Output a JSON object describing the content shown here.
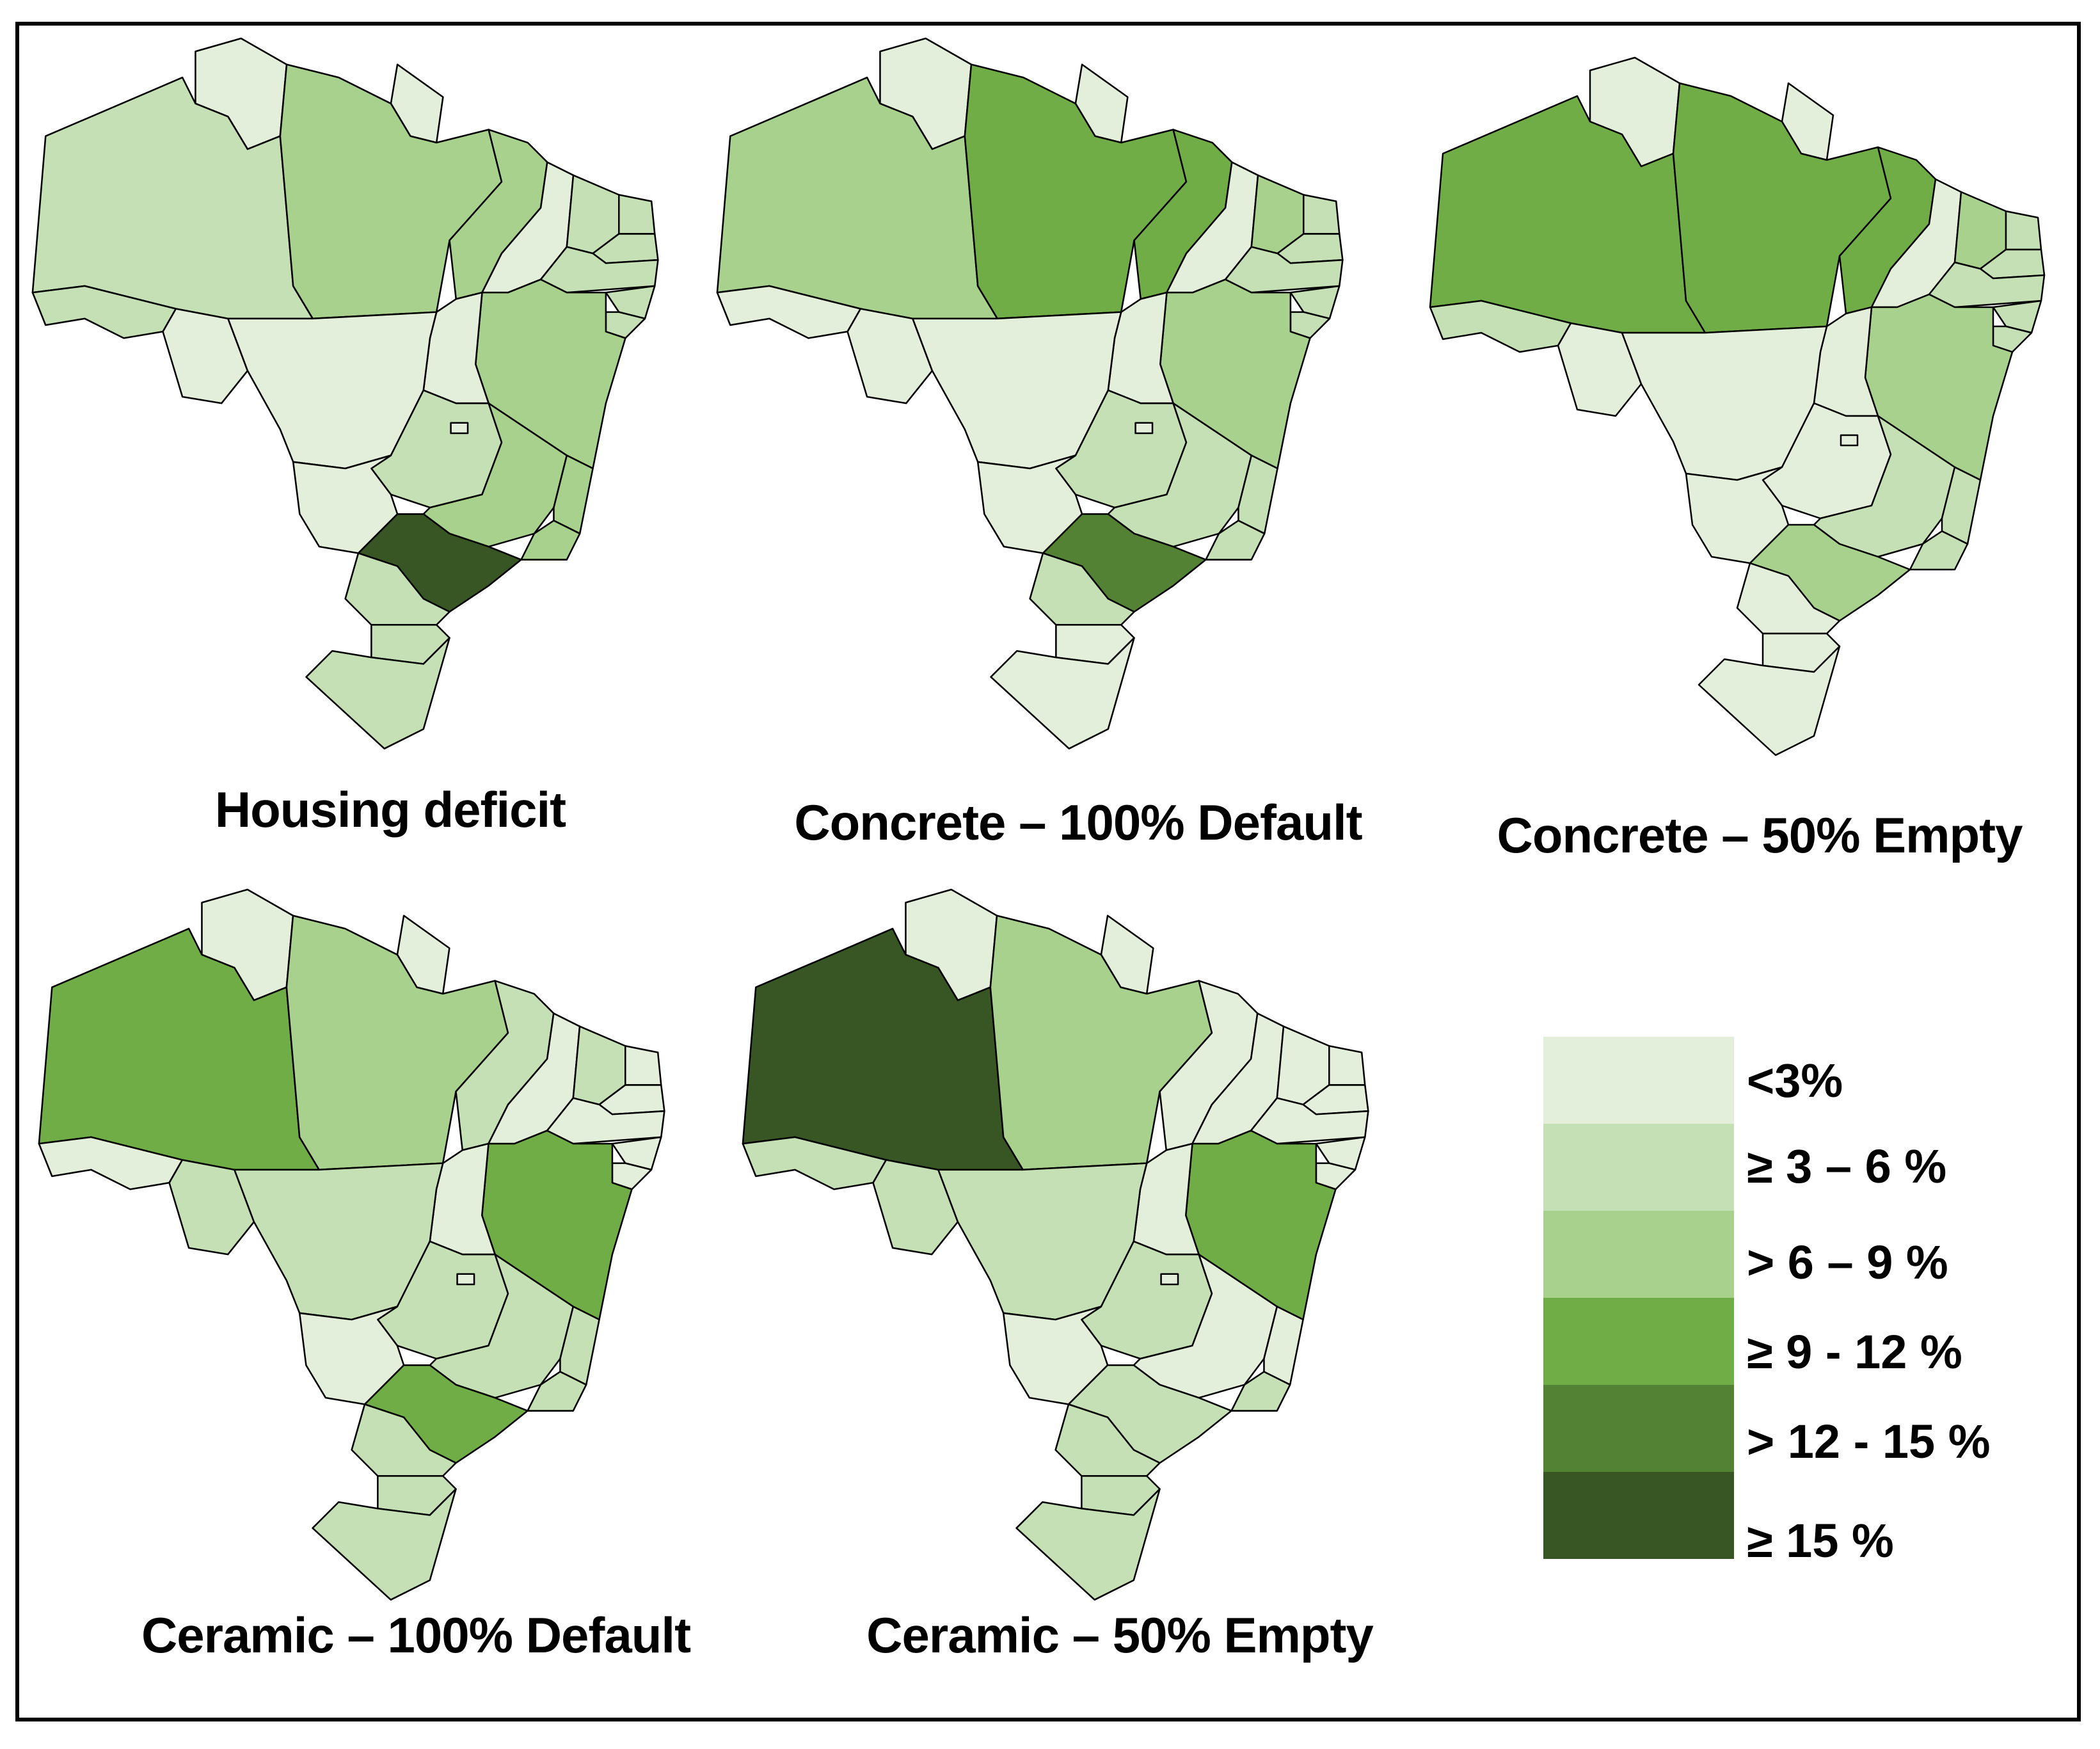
{
  "figure": {
    "panels": [
      {
        "id": "housing-deficit",
        "caption": "Housing deficit",
        "classes": {
          "RR": 0,
          "AM": 1,
          "AP": 0,
          "PA": 2,
          "MA": 2,
          "PI": 0,
          "CE": 1,
          "RN": 1,
          "PB": 1,
          "PE": 1,
          "AL": 1,
          "SE": 1,
          "BA": 2,
          "TO": 0,
          "MT": 0,
          "RO": 0,
          "AC": 1,
          "GO": 1,
          "DF": 0,
          "MS": 0,
          "MG": 2,
          "ES": 2,
          "RJ": 2,
          "SP": 5,
          "PR": 1,
          "SC": 1,
          "RS": 1
        }
      },
      {
        "id": "concrete-100-default",
        "caption": "Concrete – 100% Default",
        "classes": {
          "RR": 0,
          "AM": 2,
          "AP": 0,
          "PA": 3,
          "MA": 3,
          "PI": 0,
          "CE": 2,
          "RN": 1,
          "PB": 1,
          "PE": 1,
          "AL": 1,
          "SE": 1,
          "BA": 2,
          "TO": 0,
          "MT": 0,
          "RO": 0,
          "AC": 0,
          "GO": 1,
          "DF": 0,
          "MS": 0,
          "MG": 1,
          "ES": 1,
          "RJ": 1,
          "SP": 4,
          "PR": 1,
          "SC": 0,
          "RS": 0
        }
      },
      {
        "id": "concrete-50-empty",
        "caption": "Concrete – 50% Empty",
        "classes": {
          "RR": 0,
          "AM": 3,
          "AP": 0,
          "PA": 3,
          "MA": 3,
          "PI": 0,
          "CE": 2,
          "RN": 1,
          "PB": 1,
          "PE": 1,
          "AL": 1,
          "SE": 1,
          "BA": 2,
          "TO": 0,
          "MT": 0,
          "RO": 0,
          "AC": 1,
          "GO": 0,
          "DF": 0,
          "MS": 0,
          "MG": 1,
          "ES": 1,
          "RJ": 1,
          "SP": 2,
          "PR": 0,
          "SC": 0,
          "RS": 0
        }
      },
      {
        "id": "ceramic-100-default",
        "caption": "Ceramic – 100% Default",
        "classes": {
          "RR": 0,
          "AM": 3,
          "AP": 0,
          "PA": 2,
          "MA": 1,
          "PI": 0,
          "CE": 1,
          "RN": 0,
          "PB": 0,
          "PE": 0,
          "AL": 0,
          "SE": 0,
          "BA": 3,
          "TO": 0,
          "MT": 1,
          "RO": 1,
          "AC": 0,
          "GO": 1,
          "DF": 0,
          "MS": 0,
          "MG": 1,
          "ES": 1,
          "RJ": 1,
          "SP": 3,
          "PR": 1,
          "SC": 1,
          "RS": 1
        }
      },
      {
        "id": "ceramic-50-empty",
        "caption": "Ceramic – 50% Empty",
        "classes": {
          "RR": 0,
          "AM": 5,
          "AP": 0,
          "PA": 2,
          "MA": 0,
          "PI": 0,
          "CE": 0,
          "RN": 0,
          "PB": 0,
          "PE": 0,
          "AL": 0,
          "SE": 0,
          "BA": 3,
          "TO": 0,
          "MT": 1,
          "RO": 1,
          "AC": 1,
          "GO": 1,
          "DF": 0,
          "MS": 0,
          "MG": 0,
          "ES": 0,
          "RJ": 1,
          "SP": 1,
          "PR": 1,
          "SC": 1,
          "RS": 1
        }
      }
    ],
    "legend": [
      {
        "label": "<3%",
        "color": "#e3efdb"
      },
      {
        "label": "≥ 3 – 6 %",
        "color": "#c6e0b5"
      },
      {
        "label": "> 6 – 9 %",
        "color": "#a8d18d"
      },
      {
        "label": "≥ 9 - 12 %",
        "color": "#70ad47"
      },
      {
        "label": "> 12 - 15 %",
        "color": "#548235"
      },
      {
        "label": "≥ 15 %",
        "color": "#375623"
      }
    ],
    "no_data_color": "#ffffff",
    "border_color": "#000000"
  }
}
